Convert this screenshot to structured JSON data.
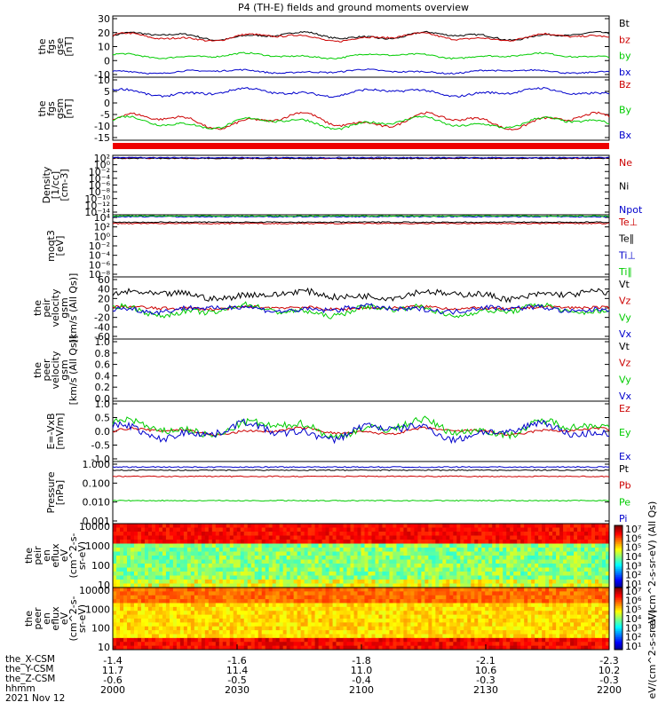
{
  "title": "P4 (TH-E) fields and ground moments overview",
  "chart_data": [
    {
      "type": "line",
      "id": "p1",
      "ylabel": [
        "the",
        "fgs",
        "gse",
        "[nT]"
      ],
      "yticks": [
        "30",
        "20",
        "10",
        "0",
        "-10"
      ],
      "ylim": [
        -12,
        31
      ],
      "series": [
        {
          "name": "Bt",
          "color": "#000000",
          "base": 17,
          "amp": 3,
          "noise": 0.6
        },
        {
          "name": "bz",
          "color": "#cc0000",
          "base": 16,
          "amp": 3,
          "noise": 0.6
        },
        {
          "name": "by",
          "color": "#00cc00",
          "base": 3,
          "amp": 2,
          "noise": 0.5
        },
        {
          "name": "bx",
          "color": "#0000cc",
          "base": -8,
          "amp": 1.5,
          "noise": 0.5
        }
      ]
    },
    {
      "type": "line",
      "id": "p2",
      "ylabel": [
        "the",
        "fgs",
        "gsm",
        "[nT]"
      ],
      "yticks": [
        "10",
        "5",
        "0",
        "-5",
        "-10",
        "-15"
      ],
      "ylim": [
        -17,
        12
      ],
      "series": [
        {
          "name": "Bz",
          "color": "#cc0000",
          "base": -8,
          "amp": 4,
          "noise": 0.5
        },
        {
          "name": "By",
          "color": "#00cc00",
          "base": -9,
          "amp": 3,
          "noise": 0.5
        },
        {
          "name": "Bx",
          "color": "#0000cc",
          "base": 5,
          "amp": 2,
          "noise": 0.5
        }
      ]
    },
    {
      "type": "line",
      "id": "p3",
      "log": true,
      "ylabel": [
        "Density",
        "[1/cc]",
        "[cm-3]"
      ],
      "yticks": [
        "10²",
        "10⁰",
        "10⁻²",
        "10⁻⁴",
        "10⁻⁶",
        "10⁻⁸",
        "10⁻¹⁰",
        "10⁻¹²",
        "10⁻¹⁴"
      ],
      "series": [
        {
          "name": "Ne",
          "color": "#cc0000",
          "level": 0.95
        },
        {
          "name": "Ni",
          "color": "#000000",
          "level": 0.95
        },
        {
          "name": "Npot",
          "color": "#0000cc",
          "level": 0.96
        }
      ]
    },
    {
      "type": "line",
      "id": "p4",
      "log": true,
      "ylabel": [
        "moqt3",
        "[eV]"
      ],
      "yticks": [
        "10⁴",
        "10²",
        "10⁰",
        "10⁻²",
        "10⁻⁴",
        "10⁻⁶",
        "10⁻⁸"
      ],
      "series": [
        {
          "name": "Te⊥",
          "color": "#cc0000",
          "level": 0.86
        },
        {
          "name": "Te∥",
          "color": "#000000",
          "level": 0.88
        },
        {
          "name": "Ti⊥",
          "color": "#0000cc",
          "level": 0.97
        },
        {
          "name": "Ti∥",
          "color": "#00cc00",
          "level": 0.98
        }
      ]
    },
    {
      "type": "line",
      "id": "p5",
      "ylabel": [
        "the",
        "peir",
        "velocity",
        "gsm",
        "[km/s (All Qs)]"
      ],
      "yticks": [
        "60",
        "40",
        "20",
        "0",
        "-20",
        "-40",
        "-60"
      ],
      "ylim": [
        -60,
        60
      ],
      "series": [
        {
          "name": "Vt",
          "color": "#000000",
          "base": 25,
          "amp": 8,
          "noise": 6
        },
        {
          "name": "Vz",
          "color": "#cc0000",
          "base": 0,
          "amp": 3,
          "noise": 3
        },
        {
          "name": "Vy",
          "color": "#00cc00",
          "base": -5,
          "amp": 12,
          "noise": 5
        },
        {
          "name": "Vx",
          "color": "#0000cc",
          "base": -2,
          "amp": 6,
          "noise": 5
        }
      ]
    },
    {
      "type": "line",
      "id": "p6",
      "ylabel": [
        "the",
        "peer",
        "velocity",
        "gsm",
        "[km/s (All Qs)]"
      ],
      "yticks": [
        "1.0",
        "0.8",
        "0.6",
        "0.4",
        "0.2",
        "0.0"
      ],
      "ylim": [
        0,
        1
      ],
      "series": [
        {
          "name": "Vt",
          "color": "#000000"
        },
        {
          "name": "Vz",
          "color": "#cc0000"
        },
        {
          "name": "Vy",
          "color": "#00cc00"
        },
        {
          "name": "Vx",
          "color": "#0000cc"
        }
      ]
    },
    {
      "type": "line",
      "id": "p7",
      "ylabel": [
        "E=-VxB",
        "[mV/m]"
      ],
      "yticks": [
        "1.0",
        "0.5",
        "0.0",
        "-0.5",
        "-1.0"
      ],
      "ylim": [
        -1,
        1
      ],
      "series": [
        {
          "name": "Ez",
          "color": "#cc0000",
          "base": 0,
          "amp": 0.12,
          "noise": 0.04
        },
        {
          "name": "Ey",
          "color": "#00cc00",
          "base": 0.1,
          "amp": 0.3,
          "noise": 0.12
        },
        {
          "name": "Ex",
          "color": "#0000cc",
          "base": 0,
          "amp": 0.3,
          "noise": 0.12
        }
      ]
    },
    {
      "type": "line",
      "id": "p8",
      "log": true,
      "ylabel": [
        "Pressure",
        "[nPa]"
      ],
      "yticks": [
        "1.000",
        "0.100",
        "0.010",
        "0.001"
      ],
      "series": [
        {
          "name": "Pt",
          "color": "#000000",
          "level": 0.86
        },
        {
          "name": "Pb",
          "color": "#cc0000",
          "level": 0.76
        },
        {
          "name": "Pe",
          "color": "#00cc00",
          "level": 0.37
        },
        {
          "name": "Pi",
          "color": "#0000cc",
          "level": 0.91
        }
      ]
    },
    {
      "type": "heatmap",
      "id": "p9",
      "ylabel": [
        "the",
        "peir",
        "en",
        "eflux",
        "eV",
        "(cm^2-s-",
        "sr-eV)"
      ],
      "yticks": [
        "10000",
        "1000",
        "100",
        "10"
      ]
    },
    {
      "type": "heatmap",
      "id": "p10",
      "ylabel": [
        "the",
        "peer",
        "en",
        "eflux",
        "eV",
        "(cm^2-s-",
        "sr-eV)"
      ],
      "yticks": [
        "10000",
        "1000",
        "100",
        "10"
      ]
    }
  ],
  "colorbars": [
    {
      "label": "eV/(cm^2-s-sr-eV) (All Qs)",
      "ticks": [
        "10⁷",
        "10⁶",
        "10⁵",
        "10⁴",
        "10³",
        "10²",
        "10¹"
      ]
    },
    {
      "label": "eV/(cm^2-s-sr-eV)",
      "ticks": [
        "10⁷",
        "10⁶",
        "10⁵",
        "10⁴",
        "10³",
        "10²",
        "10¹"
      ]
    }
  ],
  "xaxis": {
    "ticks": [
      "-1.4",
      "-1.6",
      "-1.8",
      "-2.1",
      "-2.3"
    ],
    "rows": [
      {
        "label": "the_X-CSM",
        "values": [
          "-1.4",
          "-1.6",
          "-1.8",
          "-2.1",
          "-2.3"
        ]
      },
      {
        "label": "the_Y-CSM",
        "values": [
          "11.7",
          "11.4",
          "11.0",
          "10.6",
          "10.2"
        ]
      },
      {
        "label": "the_Z-CSM",
        "values": [
          "-0.6",
          "-0.5",
          "-0.4",
          "-0.3",
          "-0.3"
        ]
      },
      {
        "label": "hhmm",
        "values": [
          "2000",
          "2030",
          "2100",
          "2130",
          "2200"
        ]
      }
    ],
    "date": "2021 Nov 12"
  }
}
